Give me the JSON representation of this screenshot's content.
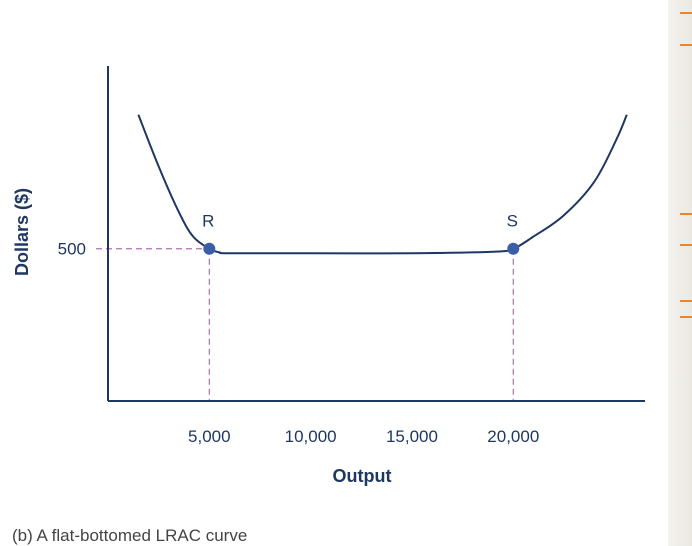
{
  "chart_data": {
    "type": "line",
    "caption": "(b) A flat-bottomed LRAC curve",
    "xlabel": "Output",
    "ylabel": "Dollars ($)",
    "x_ticks": [
      5000,
      10000,
      15000,
      20000
    ],
    "x_tick_labels": [
      "5,000",
      "10,000",
      "15,000",
      "20,000"
    ],
    "y_ticks": [
      500
    ],
    "y_tick_labels": [
      "500"
    ],
    "xlim": [
      0,
      26500
    ],
    "ylim": [
      0,
      1100
    ],
    "grid": false,
    "series": [
      {
        "x": [
          1500,
          2500,
          3500,
          4200,
          5000,
          5500,
          6000,
          10000,
          15000,
          19000,
          20000,
          21000,
          22500,
          24000,
          25100,
          25600
        ],
        "y": [
          940,
          770,
          620,
          540,
          500,
          488,
          485,
          485,
          485,
          490,
          500,
          540,
          610,
          720,
          860,
          940
        ]
      }
    ],
    "points": [
      {
        "label": "R",
        "x": 5000,
        "y": 500
      },
      {
        "label": "S",
        "x": 20000,
        "y": 500
      }
    ],
    "colors": {
      "curve": "#1f3763",
      "point": "#3a5fa8",
      "guide": "#b070b0",
      "axis": "#1f3763"
    }
  }
}
